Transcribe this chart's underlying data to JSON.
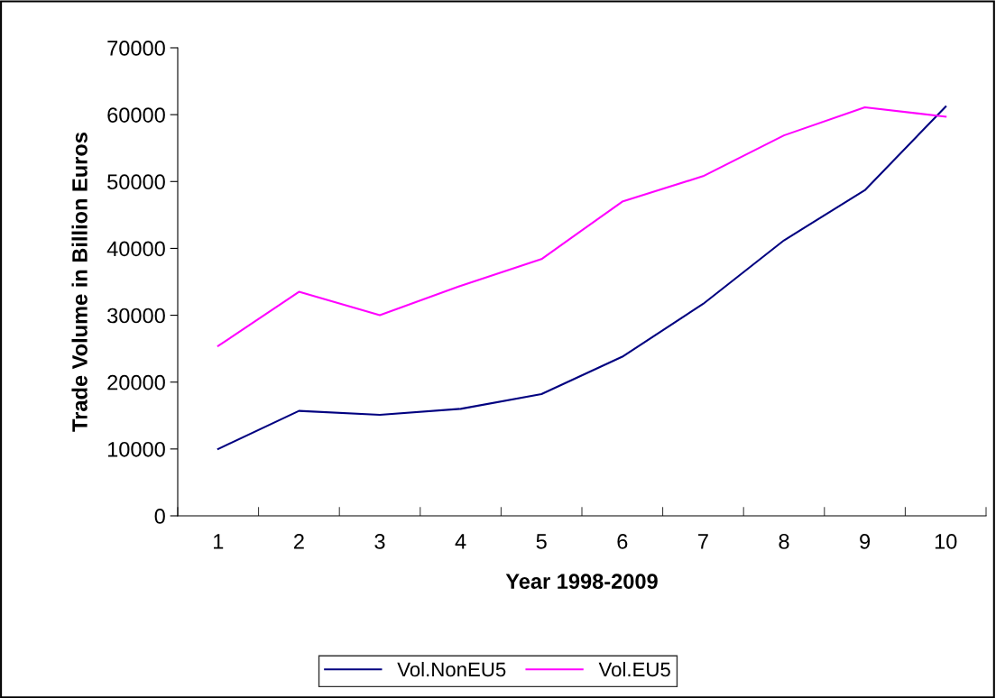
{
  "chart_data": {
    "type": "line",
    "xlabel": "Year 1998-2009",
    "ylabel": "Trade Volume in Billion Euros",
    "categories": [
      "1",
      "2",
      "3",
      "4",
      "5",
      "6",
      "7",
      "8",
      "9",
      "10"
    ],
    "series": [
      {
        "name": "Vol.NonEU5",
        "color": "#000080",
        "values": [
          10000,
          15700,
          15100,
          16000,
          18200,
          23800,
          31700,
          41200,
          48700,
          61200
        ]
      },
      {
        "name": "Vol.EU5",
        "color": "#ff00ff",
        "values": [
          25400,
          33500,
          30000,
          34400,
          38400,
          47000,
          50800,
          56900,
          61100,
          59700
        ]
      }
    ],
    "ylim": [
      0,
      70000
    ],
    "yticks": [
      0,
      10000,
      20000,
      30000,
      40000,
      50000,
      60000,
      70000
    ],
    "grid": false,
    "legend": "bottom",
    "marker": "none",
    "line_style": "solid"
  }
}
